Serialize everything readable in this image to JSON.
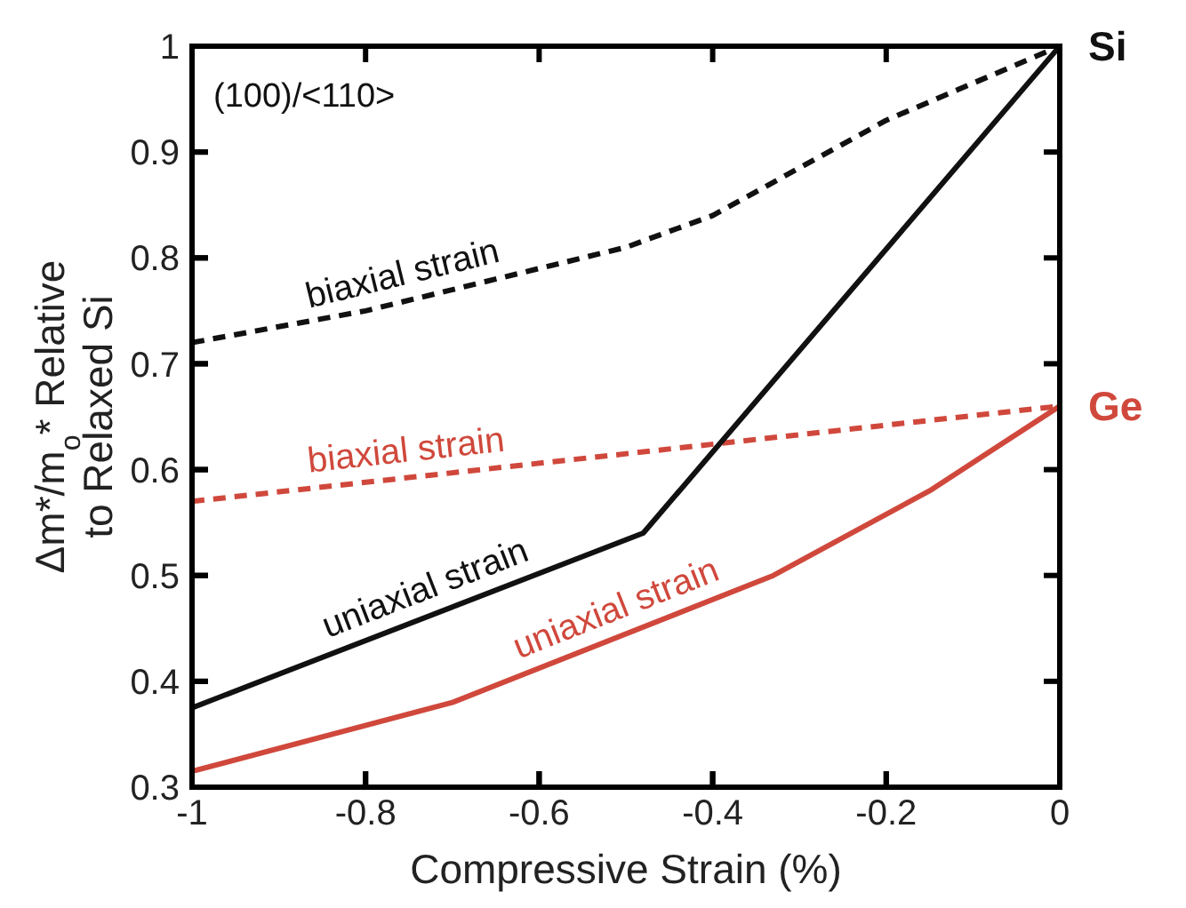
{
  "chart_data": {
    "type": "line",
    "xlabel": "Compressive Strain (%)",
    "ylabel": "Δm*/m$_{o}$* Relative to Relaxed Si",
    "xlim": [
      -1,
      0
    ],
    "xticks": [
      -1,
      -0.8,
      -0.6,
      -0.4,
      -0.2,
      0
    ],
    "ylim": [
      0.3,
      1
    ],
    "yticks": [
      0.3,
      0.4,
      0.5,
      0.6,
      0.7,
      0.8,
      0.9,
      1
    ],
    "grid": false,
    "legend": false,
    "marker": "none",
    "annotations": [
      "(100)/<110>",
      {
        "text": "Si",
        "x": 0,
        "y": 1
      },
      {
        "text": "Ge",
        "x": 0,
        "y": 0.66
      }
    ],
    "series": [
      {
        "name": "biaxial strain",
        "color": "#111111",
        "line_style": "dashed",
        "x": [
          -1,
          -0.8,
          -0.5,
          -0.4,
          -0.2,
          0
        ],
        "values": [
          0.72,
          0.75,
          0.81,
          0.84,
          0.93,
          1
        ]
      },
      {
        "name": "biaxial strain",
        "color": "#d0483c",
        "line_style": "dashed",
        "x": [
          -1,
          0
        ],
        "values": [
          0.57,
          0.66
        ]
      },
      {
        "name": "uniaxial strain",
        "color": "#111111",
        "line_style": "solid",
        "x": [
          -1,
          -0.48,
          0
        ],
        "values": [
          0.375,
          0.54,
          1
        ]
      },
      {
        "name": "uniaxial strain",
        "color": "#d0483c",
        "line_style": "solid",
        "x": [
          -1,
          -0.7,
          -0.33,
          -0.15,
          0
        ],
        "values": [
          0.315,
          0.38,
          0.5,
          0.58,
          0.66
        ]
      }
    ]
  }
}
